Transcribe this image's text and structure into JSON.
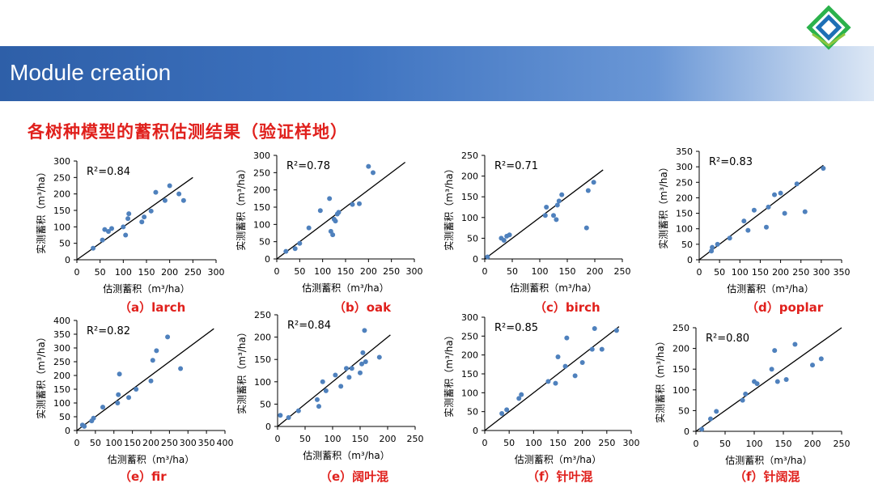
{
  "header": {
    "title": "Module creation"
  },
  "logo": {
    "icon": "interlocking-diamond-logo-icon",
    "colors": [
      "#2bb24c",
      "#1e6fb5",
      "#8dc63f"
    ]
  },
  "section_title": "各树种模型的蓄积估测结果（验证样地）",
  "colors": {
    "point": "#4f81bd",
    "line": "#000000",
    "caption": "#e0201c",
    "banner": "#2e5fa8"
  },
  "chart_data": [
    {
      "type": "scatter",
      "caption": "（a）larch",
      "r2": "R²=0.84",
      "xlabel": "估测蓄积（m³/ha）",
      "ylabel": "实测蓄积（m³/ha）",
      "xlim": [
        0,
        300
      ],
      "ylim": [
        0,
        300
      ],
      "xticks": [
        0,
        50,
        100,
        150,
        200,
        250,
        300
      ],
      "yticks": [
        0,
        50,
        100,
        150,
        200,
        250,
        300
      ],
      "fit_line": [
        [
          0,
          0
        ],
        [
          250,
          250
        ]
      ],
      "points": [
        [
          35,
          35
        ],
        [
          55,
          60
        ],
        [
          60,
          92
        ],
        [
          68,
          86
        ],
        [
          75,
          95
        ],
        [
          100,
          100
        ],
        [
          105,
          75
        ],
        [
          110,
          125
        ],
        [
          112,
          140
        ],
        [
          140,
          115
        ],
        [
          145,
          130
        ],
        [
          160,
          148
        ],
        [
          170,
          205
        ],
        [
          190,
          180
        ],
        [
          200,
          225
        ],
        [
          220,
          200
        ],
        [
          230,
          180
        ]
      ]
    },
    {
      "type": "scatter",
      "caption": "（b）oak",
      "r2": "R²=0.78",
      "xlabel": "估测蓄积（m³/ha）",
      "ylabel": "实测蓄积（m³/ha）",
      "xlim": [
        0,
        300
      ],
      "ylim": [
        0,
        300
      ],
      "xticks": [
        0,
        50,
        100,
        150,
        200,
        250,
        300
      ],
      "yticks": [
        0,
        50,
        100,
        150,
        200,
        250,
        300
      ],
      "fit_line": [
        [
          0,
          0
        ],
        [
          280,
          280
        ]
      ],
      "points": [
        [
          20,
          22
        ],
        [
          40,
          30
        ],
        [
          50,
          45
        ],
        [
          70,
          90
        ],
        [
          95,
          140
        ],
        [
          115,
          175
        ],
        [
          118,
          80
        ],
        [
          122,
          70
        ],
        [
          125,
          115
        ],
        [
          128,
          110
        ],
        [
          132,
          130
        ],
        [
          135,
          135
        ],
        [
          165,
          158
        ],
        [
          180,
          160
        ],
        [
          200,
          268
        ],
        [
          210,
          250
        ]
      ]
    },
    {
      "type": "scatter",
      "caption": "（c）birch",
      "r2": "R²=0.71",
      "xlabel": "估测蓄积（m³/ha）",
      "ylabel": "实测蓄积（m³/ha）",
      "xlim": [
        0,
        250
      ],
      "ylim": [
        0,
        250
      ],
      "xticks": [
        0,
        50,
        100,
        150,
        200,
        250
      ],
      "yticks": [
        0,
        50,
        100,
        150,
        200,
        250
      ],
      "fit_line": [
        [
          0,
          0
        ],
        [
          215,
          215
        ]
      ],
      "points": [
        [
          5,
          5
        ],
        [
          30,
          50
        ],
        [
          35,
          45
        ],
        [
          40,
          55
        ],
        [
          45,
          58
        ],
        [
          110,
          105
        ],
        [
          112,
          125
        ],
        [
          125,
          105
        ],
        [
          130,
          95
        ],
        [
          132,
          130
        ],
        [
          135,
          140
        ],
        [
          140,
          155
        ],
        [
          185,
          75
        ],
        [
          188,
          165
        ],
        [
          198,
          185
        ]
      ]
    },
    {
      "type": "scatter",
      "caption": "（d）poplar",
      "r2": "R²=0.83",
      "xlabel": "估测蓄积（m³/ha）",
      "ylabel": "实测蓄积（m³/ha）",
      "xlim": [
        0,
        350
      ],
      "ylim": [
        0,
        350
      ],
      "xticks": [
        0,
        50,
        100,
        150,
        200,
        250,
        300,
        350
      ],
      "yticks": [
        0,
        50,
        100,
        150,
        200,
        250,
        300,
        350
      ],
      "fit_line": [
        [
          0,
          0
        ],
        [
          305,
          305
        ]
      ],
      "points": [
        [
          30,
          28
        ],
        [
          32,
          40
        ],
        [
          45,
          50
        ],
        [
          75,
          70
        ],
        [
          110,
          125
        ],
        [
          120,
          95
        ],
        [
          135,
          160
        ],
        [
          165,
          105
        ],
        [
          170,
          170
        ],
        [
          185,
          210
        ],
        [
          200,
          215
        ],
        [
          210,
          150
        ],
        [
          240,
          245
        ],
        [
          260,
          155
        ],
        [
          305,
          295
        ]
      ]
    },
    {
      "type": "scatter",
      "caption": "（e）fir",
      "r2": "R²=0.82",
      "xlabel": "估测蓄积（m³/ha）",
      "ylabel": "实测蓄积（m³/ha）",
      "xlim": [
        0,
        400
      ],
      "ylim": [
        0,
        400
      ],
      "xticks": [
        0,
        50,
        100,
        150,
        200,
        250,
        300,
        350,
        400
      ],
      "yticks": [
        0,
        50,
        100,
        150,
        200,
        250,
        300,
        350,
        400
      ],
      "fit_line": [
        [
          0,
          0
        ],
        [
          370,
          370
        ]
      ],
      "points": [
        [
          15,
          20
        ],
        [
          20,
          15
        ],
        [
          40,
          35
        ],
        [
          45,
          45
        ],
        [
          70,
          85
        ],
        [
          110,
          100
        ],
        [
          112,
          130
        ],
        [
          115,
          205
        ],
        [
          140,
          120
        ],
        [
          160,
          150
        ],
        [
          200,
          180
        ],
        [
          205,
          255
        ],
        [
          215,
          290
        ],
        [
          245,
          340
        ],
        [
          280,
          225
        ]
      ]
    },
    {
      "type": "scatter",
      "caption": "（e）阔叶混",
      "r2": "R²=0.84",
      "xlabel": "估测蓄积（m³/ha）",
      "ylabel": "实测蓄积（m³/ha）",
      "xlim": [
        0,
        250
      ],
      "ylim": [
        0,
        250
      ],
      "xticks": [
        0,
        50,
        100,
        150,
        200,
        250
      ],
      "yticks": [
        0,
        50,
        100,
        150,
        200,
        250
      ],
      "fit_line": [
        [
          0,
          0
        ],
        [
          205,
          205
        ]
      ],
      "points": [
        [
          5,
          25
        ],
        [
          20,
          20
        ],
        [
          38,
          35
        ],
        [
          72,
          60
        ],
        [
          75,
          45
        ],
        [
          82,
          100
        ],
        [
          88,
          80
        ],
        [
          105,
          115
        ],
        [
          115,
          90
        ],
        [
          125,
          130
        ],
        [
          130,
          110
        ],
        [
          135,
          130
        ],
        [
          150,
          120
        ],
        [
          153,
          140
        ],
        [
          155,
          165
        ],
        [
          158,
          215
        ],
        [
          160,
          145
        ],
        [
          185,
          155
        ]
      ]
    },
    {
      "type": "scatter",
      "caption": "（f）针叶混",
      "r2": "R²=0.85",
      "xlabel": "估测蓄积（m³/ha）",
      "ylabel": "实测蓄积（m³/ha）",
      "xlim": [
        0,
        300
      ],
      "ylim": [
        0,
        300
      ],
      "xticks": [
        0,
        50,
        100,
        150,
        200,
        250,
        300
      ],
      "yticks": [
        0,
        50,
        100,
        150,
        200,
        250,
        300
      ],
      "fit_line": [
        [
          0,
          0
        ],
        [
          275,
          275
        ]
      ],
      "points": [
        [
          35,
          45
        ],
        [
          45,
          55
        ],
        [
          70,
          85
        ],
        [
          75,
          95
        ],
        [
          130,
          130
        ],
        [
          145,
          125
        ],
        [
          150,
          195
        ],
        [
          165,
          170
        ],
        [
          168,
          245
        ],
        [
          185,
          145
        ],
        [
          200,
          180
        ],
        [
          220,
          215
        ],
        [
          225,
          270
        ],
        [
          240,
          215
        ],
        [
          270,
          265
        ]
      ]
    },
    {
      "type": "scatter",
      "caption": "（f）针阔混",
      "r2": "R²=0.80",
      "xlabel": "估测蓄积（m³/ha）",
      "ylabel": "实测蓄积（m³/ha）",
      "xlim": [
        0,
        250
      ],
      "ylim": [
        0,
        250
      ],
      "xticks": [
        0,
        50,
        100,
        150,
        200,
        250
      ],
      "yticks": [
        0,
        50,
        100,
        150,
        200,
        250
      ],
      "fit_line": [
        [
          0,
          0
        ],
        [
          250,
          250
        ]
      ],
      "points": [
        [
          10,
          5
        ],
        [
          25,
          30
        ],
        [
          35,
          48
        ],
        [
          80,
          75
        ],
        [
          85,
          90
        ],
        [
          100,
          120
        ],
        [
          105,
          115
        ],
        [
          130,
          150
        ],
        [
          135,
          195
        ],
        [
          140,
          120
        ],
        [
          155,
          125
        ],
        [
          170,
          210
        ],
        [
          200,
          160
        ],
        [
          215,
          175
        ]
      ]
    }
  ]
}
